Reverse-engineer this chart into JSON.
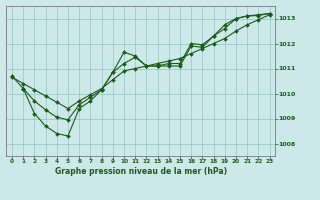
{
  "title": "Graphe pression niveau de la mer (hPa)",
  "background_color": "#cce8e8",
  "line_color": "#1a5c1a",
  "xlim": [
    -0.5,
    23.5
  ],
  "ylim": [
    1007.5,
    1013.5
  ],
  "yticks": [
    1008,
    1009,
    1010,
    1011,
    1012,
    1013
  ],
  "xticks": [
    0,
    1,
    2,
    3,
    4,
    5,
    6,
    7,
    8,
    9,
    10,
    11,
    12,
    13,
    14,
    15,
    16,
    17,
    18,
    19,
    20,
    21,
    22,
    23
  ],
  "series": [
    {
      "x": [
        0,
        1
      ],
      "y": [
        1010.7,
        1010.2
      ]
    },
    {
      "x": [
        0,
        1,
        2,
        3,
        4,
        5,
        6,
        7,
        8,
        9,
        10,
        11,
        12,
        13,
        14,
        15,
        16,
        17,
        18,
        19,
        20,
        21,
        22,
        23
      ],
      "y": [
        1010.65,
        1010.4,
        1010.15,
        1009.9,
        1009.65,
        1009.4,
        1009.7,
        1009.95,
        1010.2,
        1010.55,
        1010.9,
        1011.0,
        1011.1,
        1011.2,
        1011.3,
        1011.4,
        1011.6,
        1011.8,
        1012.0,
        1012.2,
        1012.5,
        1012.75,
        1012.95,
        1013.15
      ]
    },
    {
      "x": [
        1,
        2,
        3,
        4,
        5,
        6,
        7,
        8,
        9,
        10,
        11,
        12,
        13,
        14,
        15,
        16,
        17,
        18,
        19,
        20,
        21,
        22,
        23
      ],
      "y": [
        1010.2,
        1009.2,
        1008.7,
        1008.4,
        1008.3,
        1009.4,
        1009.7,
        1010.15,
        1010.85,
        1011.65,
        1011.5,
        1011.1,
        1011.1,
        1011.1,
        1011.1,
        1011.9,
        1011.85,
        1012.3,
        1012.75,
        1013.0,
        1013.1,
        1013.15,
        1013.2
      ]
    },
    {
      "x": [
        1,
        2,
        3,
        4,
        5,
        6,
        7,
        8,
        9,
        10,
        11,
        12,
        13,
        14,
        15,
        16,
        17,
        18,
        19,
        20,
        21,
        22,
        23
      ],
      "y": [
        1010.2,
        1009.7,
        1009.35,
        1009.05,
        1008.95,
        1009.55,
        1009.85,
        1010.15,
        1010.85,
        1011.2,
        1011.45,
        1011.1,
        1011.1,
        1011.2,
        1011.2,
        1012.0,
        1011.95,
        1012.3,
        1012.6,
        1013.0,
        1013.1,
        1013.12,
        1013.2
      ]
    }
  ]
}
